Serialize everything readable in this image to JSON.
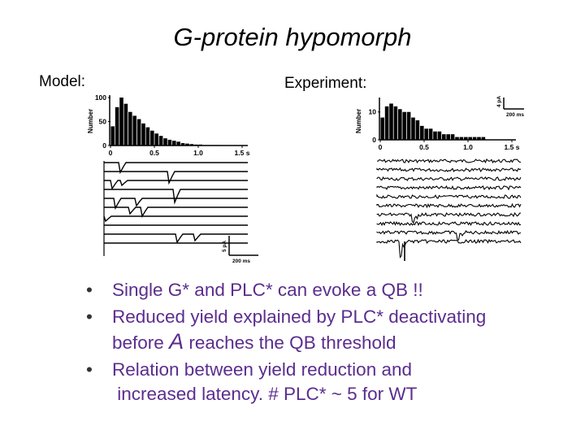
{
  "title": "G-protein hypomorph",
  "labels": {
    "model": "Model:",
    "experiment": "Experiment:"
  },
  "bullets": [
    {
      "text": "Single G* and PLC* can evoke a QB !!"
    },
    {
      "line1": "Reduced yield explained by PLC* deactivating",
      "line2_pre": "before",
      "line2_symbol": "A",
      "line2_post": "reaches the QB threshold"
    },
    {
      "line1": "Relation between yield reduction and",
      "line2": "increased latency.  # PLC* ~ 5 for WT"
    }
  ],
  "chart_data": [
    {
      "type": "bar",
      "panel": "model-histogram",
      "ylabel": "Number",
      "xticks": [
        "0",
        "0.5",
        "1.0",
        "1.5 s"
      ],
      "xtick_values": [
        0,
        0.5,
        1.0,
        1.5
      ],
      "yticks": [
        "0",
        "50",
        "100"
      ],
      "ytick_values": [
        0,
        50,
        100
      ],
      "xlim": [
        0,
        1.5
      ],
      "ylim": [
        0,
        100
      ],
      "bin_width": 0.05,
      "values": [
        40,
        80,
        100,
        87,
        70,
        62,
        55,
        46,
        38,
        31,
        25,
        20,
        15,
        12,
        10,
        8,
        5,
        4,
        3,
        2,
        2,
        1,
        1,
        1,
        1,
        0,
        0,
        0,
        0,
        0
      ]
    },
    {
      "type": "bar",
      "panel": "experiment-histogram",
      "ylabel": "Number",
      "xticks": [
        "0",
        "0.5",
        "1.0",
        "1.5 s"
      ],
      "xtick_values": [
        0,
        0.5,
        1.0,
        1.5
      ],
      "yticks": [
        "0",
        "10"
      ],
      "ytick_values": [
        0,
        10
      ],
      "xlim": [
        0,
        1.5
      ],
      "ylim": [
        0,
        14
      ],
      "bin_width": 0.05,
      "values": [
        8,
        12,
        13,
        12,
        11,
        10,
        10,
        8,
        7,
        5,
        4,
        4,
        3,
        3,
        2,
        2,
        2,
        1,
        1,
        1,
        1,
        1,
        1,
        1,
        0,
        0,
        0,
        0,
        0,
        0
      ]
    }
  ],
  "scale_bars": {
    "model": {
      "amplitude": "5 pA",
      "time": "200 ms"
    },
    "experiment": {
      "amplitude": "4 pA",
      "time": "200 ms"
    }
  },
  "colors": {
    "bullet_text": "#5b2d8e",
    "ink": "#000000"
  }
}
